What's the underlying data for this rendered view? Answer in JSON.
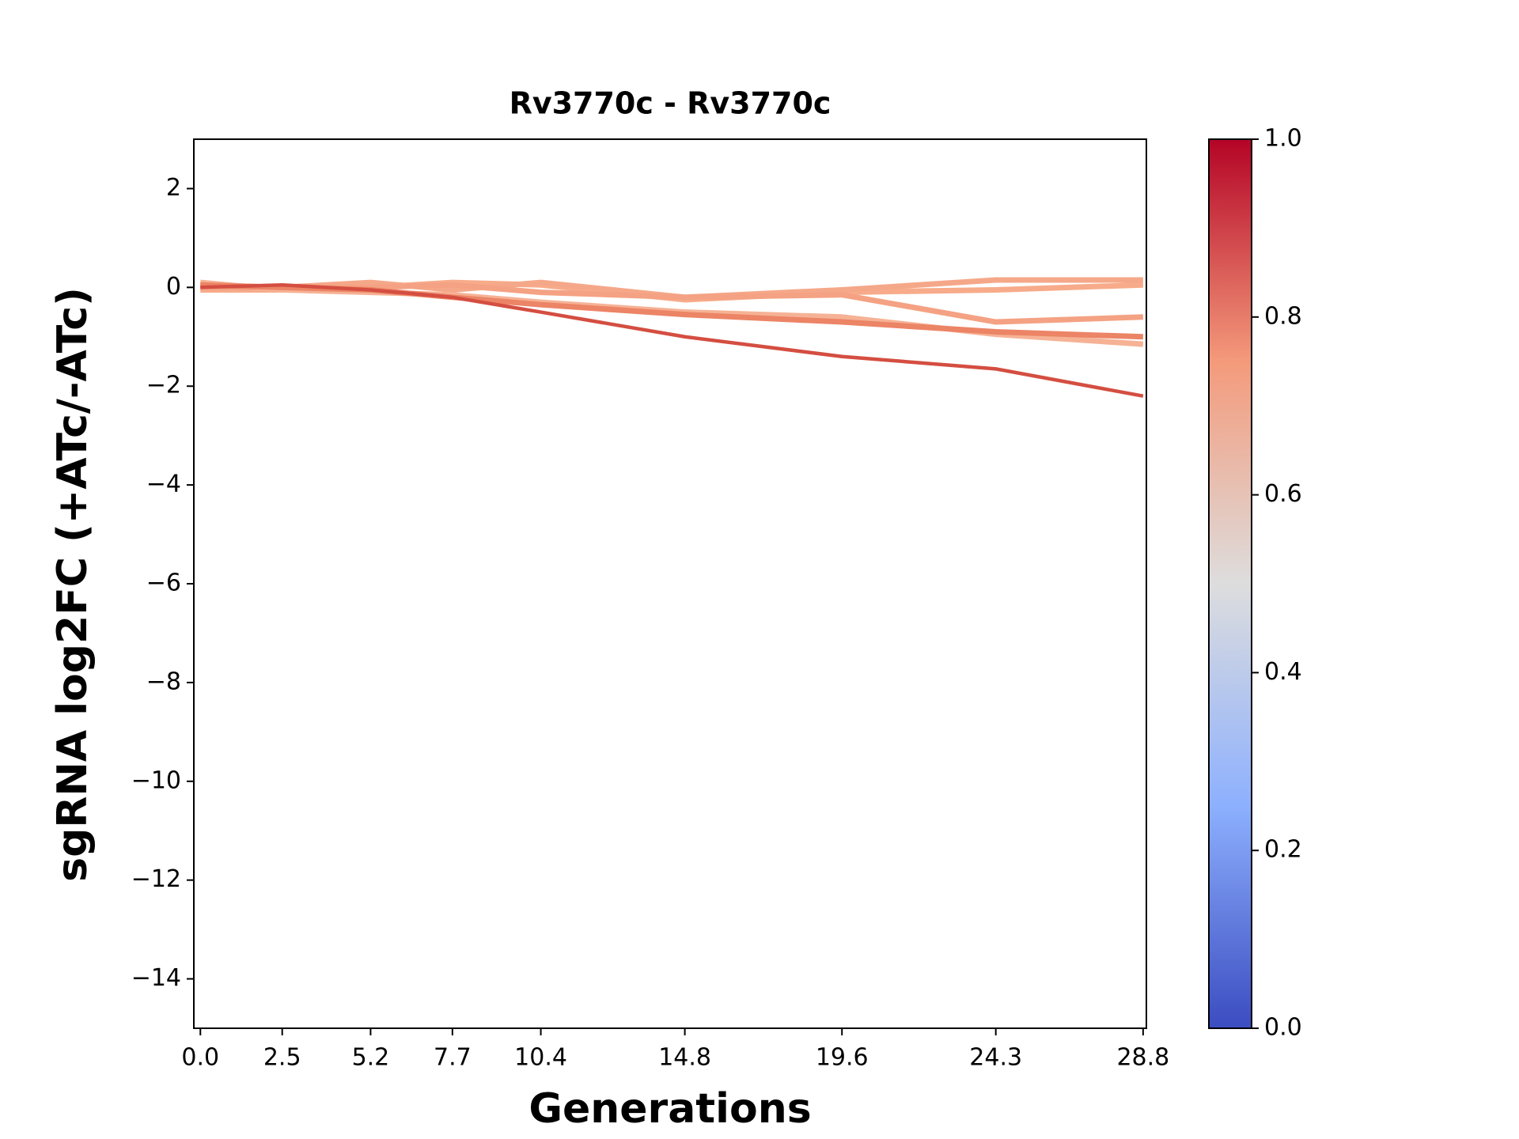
{
  "chart_data": {
    "type": "line",
    "title": "Rv3770c - Rv3770c",
    "x_label": "Generations",
    "y_label": "sgRNA log2FC (+ATc/-ATc)",
    "x": [
      0,
      2.5,
      5.2,
      7.7,
      10.4,
      14.8,
      19.6,
      24.3,
      28.8
    ],
    "series": [
      {
        "color": "#f7ab8a",
        "values": [
          -0.05,
          -0.05,
          0,
          0.1,
          0.05,
          -0.25,
          -0.1,
          -0.05,
          0.05
        ]
      },
      {
        "color": "#f5a889",
        "values": [
          0.05,
          0,
          0.1,
          -0.05,
          0.1,
          -0.2,
          -0.05,
          0.15,
          0.15
        ]
      },
      {
        "color": "#f4a283",
        "values": [
          0,
          0,
          0,
          0.05,
          -0.1,
          -0.2,
          -0.15,
          -0.7,
          -0.6
        ]
      },
      {
        "color": "#f6b295",
        "values": [
          0.1,
          -0.05,
          -0.1,
          -0.15,
          -0.3,
          -0.5,
          -0.6,
          -0.95,
          -1.15
        ]
      },
      {
        "color": "#ec8466",
        "values": [
          0.05,
          0,
          -0.05,
          -0.2,
          -0.35,
          -0.55,
          -0.7,
          -0.9,
          -1.0
        ]
      },
      {
        "color": "#d44e41",
        "values": [
          0,
          0.05,
          -0.05,
          -0.2,
          -0.5,
          -1.0,
          -1.4,
          -1.65,
          -2.2
        ]
      }
    ],
    "xlim": [
      -0.2,
      28.9
    ],
    "ylim": [
      -15,
      3
    ],
    "xticks": [
      {
        "value": 0,
        "label": "0.0"
      },
      2.5,
      5.2,
      7.7,
      10.4,
      14.8,
      19.6,
      24.3,
      28.8
    ],
    "yticks": [
      2,
      0,
      {
        "value": -2,
        "label": "−2"
      },
      {
        "value": -4,
        "label": "−4"
      },
      {
        "value": -6,
        "label": "−6"
      },
      {
        "value": -8,
        "label": "−8"
      },
      {
        "value": -10,
        "label": "−10"
      },
      {
        "value": -12,
        "label": "−12"
      },
      {
        "value": -14,
        "label": "−14"
      }
    ],
    "grid": false,
    "colorbar": {
      "colors": [
        "#3b4cc0",
        "#8db0fe",
        "#dddddd",
        "#f49a7b",
        "#b40426"
      ],
      "lim": [
        0,
        1
      ],
      "ticks": [
        {
          "value": 0,
          "label": "0.0"
        },
        0.2,
        0.4,
        0.6,
        0.8,
        {
          "value": 1,
          "label": "1.0"
        }
      ]
    }
  }
}
